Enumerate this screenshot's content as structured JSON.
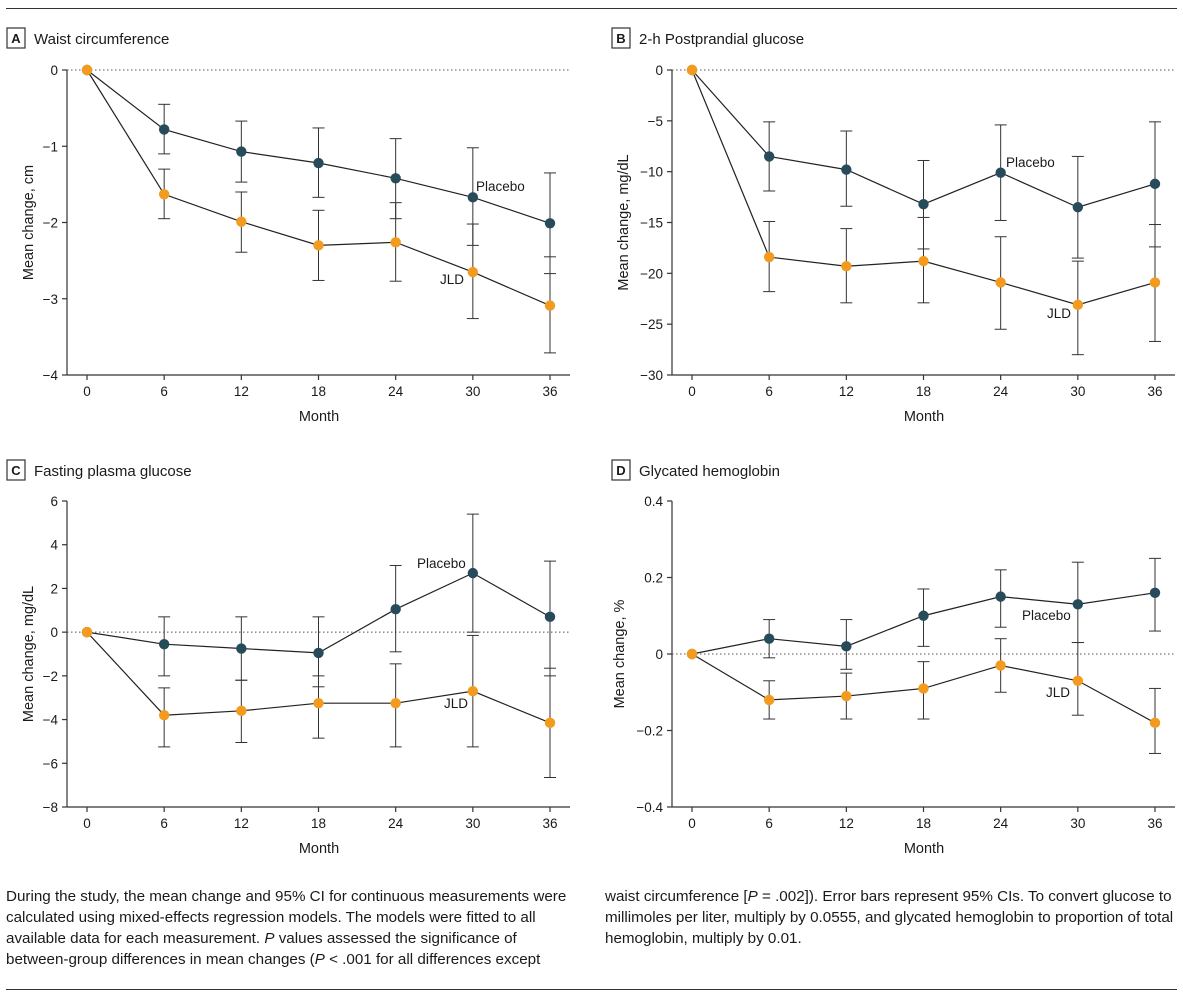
{
  "colors": {
    "placebo": "#274b5a",
    "jld": "#f39b1f",
    "axis": "#333333",
    "errorbar": "#333333"
  },
  "chart_data": [
    {
      "type": "line",
      "label": "A",
      "title": "Waist circumference",
      "xlabel": "Month",
      "ylabel": "Mean change, cm",
      "x": [
        0,
        6,
        12,
        18,
        24,
        30,
        36
      ],
      "ylim": [
        -4,
        0
      ],
      "yticks": [
        0,
        -1,
        -2,
        -3,
        -4
      ],
      "ytick_labels": [
        "0",
        "−1",
        "−2",
        "−3",
        "−4"
      ],
      "series": [
        {
          "name": "Placebo",
          "values": [
            0,
            -0.78,
            -1.07,
            -1.22,
            -1.42,
            -1.67,
            -2.01
          ],
          "lower": [
            0,
            -1.1,
            -1.47,
            -1.67,
            -1.95,
            -2.3,
            -2.67
          ],
          "upper": [
            0,
            -0.45,
            -0.67,
            -0.76,
            -0.9,
            -1.02,
            -1.35
          ]
        },
        {
          "name": "JLD",
          "values": [
            0,
            -1.63,
            -1.99,
            -2.3,
            -2.26,
            -2.65,
            -3.09
          ],
          "lower": [
            0,
            -1.95,
            -2.39,
            -2.76,
            -2.77,
            -3.26,
            -3.71
          ],
          "upper": [
            0,
            -1.3,
            -1.6,
            -1.84,
            -1.74,
            -2.02,
            -2.45
          ]
        }
      ],
      "annotations": [
        "Placebo",
        "JLD"
      ]
    },
    {
      "type": "line",
      "label": "B",
      "title": "2-h Postprandial glucose",
      "xlabel": "Month",
      "ylabel": "Mean change, mg/dL",
      "x": [
        0,
        6,
        12,
        18,
        24,
        30,
        36
      ],
      "ylim": [
        -30,
        0
      ],
      "yticks": [
        0,
        -5,
        -10,
        -15,
        -20,
        -25,
        -30
      ],
      "ytick_labels": [
        "0",
        "−5",
        "−10",
        "−15",
        "−20",
        "−25",
        "−30"
      ],
      "series": [
        {
          "name": "Placebo",
          "values": [
            0,
            -8.5,
            -9.8,
            -13.2,
            -10.1,
            -13.5,
            -11.2
          ],
          "lower": [
            0,
            -11.9,
            -13.4,
            -17.6,
            -14.8,
            -18.5,
            -17.4
          ],
          "upper": [
            0,
            -5.1,
            -6.0,
            -8.9,
            -5.4,
            -8.5,
            -5.1
          ]
        },
        {
          "name": "JLD",
          "values": [
            0,
            -18.4,
            -19.3,
            -18.8,
            -20.9,
            -23.1,
            -20.9
          ],
          "lower": [
            0,
            -21.8,
            -22.9,
            -22.9,
            -25.5,
            -28.0,
            -26.7
          ],
          "upper": [
            0,
            -14.9,
            -15.6,
            -14.5,
            -16.4,
            -18.8,
            -15.2
          ]
        }
      ],
      "annotations": [
        "Placebo",
        "JLD"
      ]
    },
    {
      "type": "line",
      "label": "C",
      "title": "Fasting plasma glucose",
      "xlabel": "Month",
      "ylabel": "Mean change, mg/dL",
      "x": [
        0,
        6,
        12,
        18,
        24,
        30,
        36
      ],
      "ylim": [
        -8,
        6
      ],
      "yticks": [
        6,
        4,
        2,
        0,
        -2,
        -4,
        -6,
        -8
      ],
      "ytick_labels": [
        "6",
        "4",
        "2",
        "0",
        "−2",
        "−4",
        "−6",
        "−8"
      ],
      "series": [
        {
          "name": "Placebo",
          "values": [
            0,
            -0.55,
            -0.75,
            -0.95,
            1.05,
            2.7,
            0.7
          ],
          "lower": [
            0,
            -2.0,
            -2.2,
            -2.5,
            -0.9,
            0.0,
            -2.0
          ],
          "upper": [
            0,
            0.7,
            0.7,
            0.7,
            3.05,
            5.4,
            3.25
          ]
        },
        {
          "name": "JLD",
          "values": [
            0,
            -3.8,
            -3.6,
            -3.25,
            -3.25,
            -2.7,
            -4.15
          ],
          "lower": [
            0,
            -5.25,
            -5.05,
            -4.85,
            -5.25,
            -5.25,
            -6.65
          ],
          "upper": [
            0,
            -2.55,
            -2.2,
            -2.0,
            -1.45,
            -0.15,
            -1.65
          ]
        }
      ],
      "annotations": [
        "Placebo",
        "JLD"
      ]
    },
    {
      "type": "line",
      "label": "D",
      "title": "Glycated hemoglobin",
      "xlabel": "Month",
      "ylabel": "Mean change, %",
      "x": [
        0,
        6,
        12,
        18,
        24,
        30,
        36
      ],
      "ylim": [
        -0.4,
        0.4
      ],
      "yticks": [
        0.4,
        0.2,
        0,
        -0.2,
        -0.4
      ],
      "ytick_labels": [
        "0.4",
        "0.2",
        "0",
        "−0.2",
        "−0.4"
      ],
      "series": [
        {
          "name": "Placebo",
          "values": [
            0,
            0.04,
            0.02,
            0.1,
            0.15,
            0.13,
            0.16
          ],
          "lower": [
            0,
            -0.01,
            -0.04,
            0.02,
            0.07,
            0.03,
            0.06
          ],
          "upper": [
            0,
            0.09,
            0.09,
            0.17,
            0.22,
            0.24,
            0.25
          ]
        },
        {
          "name": "JLD",
          "values": [
            0,
            -0.12,
            -0.11,
            -0.09,
            -0.03,
            -0.07,
            -0.18
          ],
          "lower": [
            0,
            -0.17,
            -0.17,
            -0.17,
            -0.1,
            -0.16,
            -0.26
          ],
          "upper": [
            0,
            -0.07,
            -0.05,
            -0.02,
            0.04,
            0.03,
            -0.09
          ]
        }
      ],
      "annotations": [
        "Placebo",
        "JLD"
      ]
    }
  ],
  "caption": {
    "left": "During the study, the mean change and 95% CI for continuous measurements were calculated using mixed-effects regression models. The models were fitted to all available data for each measurement. P values assessed the significance of between-group differences in mean changes (P < .001 for all differences except",
    "right": "waist circumference [P = .002]). Error bars represent 95% CIs. To convert glucose to millimoles per liter, multiply by 0.0555, and glycated hemoglobin to proportion of total hemoglobin, multiply by 0.01."
  }
}
